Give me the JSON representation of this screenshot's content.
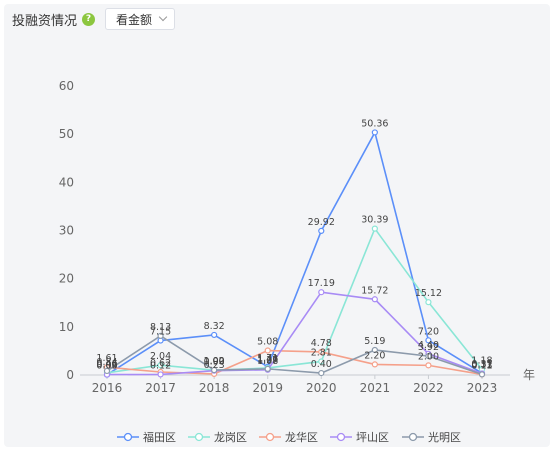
{
  "header": {
    "title": "投融资情况",
    "help_icon": "question-icon",
    "select_value": "看金额"
  },
  "chart_data": {
    "type": "line",
    "title": "",
    "xlabel": "年",
    "ylabel": "",
    "x": [
      "2016",
      "2017",
      "2018",
      "2019",
      "2020",
      "2021",
      "2022",
      "2023"
    ],
    "ylim": [
      0,
      60
    ],
    "yticks": [
      0,
      10,
      20,
      30,
      40,
      50,
      60
    ],
    "grid": false,
    "legend": "bottom",
    "series": [
      {
        "name": "福田区",
        "color": "#5b8ff9",
        "values": [
          0.06,
          7.15,
          8.32,
          1.71,
          29.92,
          50.36,
          7.2,
          0.37
        ]
      },
      {
        "name": "龙岗区",
        "color": "#8ae6d6",
        "values": [
          0.46,
          2.04,
          1.0,
          1.46,
          2.81,
          30.39,
          15.12,
          1.18
        ]
      },
      {
        "name": "龙华区",
        "color": "#f5a08a",
        "values": [
          1.61,
          0.62,
          0.23,
          5.08,
          4.78,
          2.2,
          2.0,
          0.11
        ]
      },
      {
        "name": "坪山区",
        "color": "#a88bf5",
        "values": [
          0.09,
          0.12,
          0.9,
          1.08,
          17.19,
          15.72,
          4.4,
          0.31
        ]
      },
      {
        "name": "光明区",
        "color": "#8c9aab",
        "values": [
          0.84,
          8.13,
          1.02,
          1.27,
          0.4,
          5.19,
          3.92,
          0.13
        ]
      }
    ]
  }
}
